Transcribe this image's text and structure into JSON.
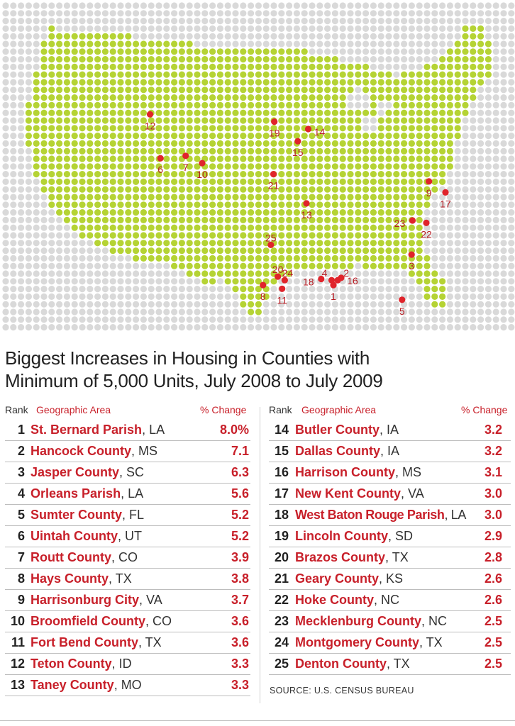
{
  "title_line1": "Biggest Increases in Housing in Counties with",
  "title_line2": "Minimum of 5,000 Units, July 2008 to July 2009",
  "headers": {
    "rank": "Rank",
    "area": "Geographic Area",
    "change": "% Change"
  },
  "colors": {
    "dot_background": "#d9d9d9",
    "dot_land": "#b5d334",
    "marker": "#e0242b",
    "label": "#b81e25"
  },
  "markers": [
    {
      "label": "1",
      "lon": -89.9,
      "lat": 29.9
    },
    {
      "label": "2",
      "lon": -89.4,
      "lat": 30.3
    },
    {
      "label": "3",
      "lon": -80.9,
      "lat": 32.4
    },
    {
      "label": "4",
      "lon": -90.1,
      "lat": 30.3
    },
    {
      "label": "5",
      "lon": -82.0,
      "lat": 28.7
    },
    {
      "label": "6",
      "lon": -109.8,
      "lat": 40.3
    },
    {
      "label": "7",
      "lon": -106.9,
      "lat": 40.5
    },
    {
      "label": "8",
      "lon": -98.0,
      "lat": 29.9
    },
    {
      "label": "9",
      "lon": -78.9,
      "lat": 38.4
    },
    {
      "label": "10",
      "lon": -105.0,
      "lat": 39.9
    },
    {
      "label": "11",
      "lon": -95.8,
      "lat": 29.6
    },
    {
      "label": "12",
      "lon": -111.0,
      "lat": 43.9
    },
    {
      "label": "13",
      "lon": -93.0,
      "lat": 36.6
    },
    {
      "label": "14",
      "lon": -92.8,
      "lat": 42.7
    },
    {
      "label": "15",
      "lon": -94.0,
      "lat": 41.7
    },
    {
      "label": "16",
      "lon": -89.0,
      "lat": 30.5
    },
    {
      "label": "17",
      "lon": -77.0,
      "lat": 37.5
    },
    {
      "label": "18",
      "lon": -91.3,
      "lat": 30.4
    },
    {
      "label": "19",
      "lon": -96.7,
      "lat": 43.3
    },
    {
      "label": "20",
      "lon": -96.3,
      "lat": 30.6
    },
    {
      "label": "21",
      "lon": -96.8,
      "lat": 39.0
    },
    {
      "label": "22",
      "lon": -79.2,
      "lat": 35.0
    },
    {
      "label": "23",
      "lon": -80.8,
      "lat": 35.2
    },
    {
      "label": "24",
      "lon": -95.5,
      "lat": 30.3
    },
    {
      "label": "25",
      "lon": -97.1,
      "lat": 33.2
    }
  ],
  "rows_left": [
    {
      "rank": "1",
      "name": "St. Bernard Parish",
      "state": ", LA",
      "change": "8.0%"
    },
    {
      "rank": "2",
      "name": "Hancock County",
      "state": ", MS",
      "change": "7.1"
    },
    {
      "rank": "3",
      "name": "Jasper County",
      "state": ", SC",
      "change": "6.3"
    },
    {
      "rank": "4",
      "name": "Orleans Parish",
      "state": ", LA",
      "change": "5.6"
    },
    {
      "rank": "5",
      "name": "Sumter County",
      "state": ", FL",
      "change": "5.2"
    },
    {
      "rank": "6",
      "name": "Uintah County",
      "state": ", UT",
      "change": "5.2"
    },
    {
      "rank": "7",
      "name": "Routt County",
      "state": ", CO",
      "change": "3.9"
    },
    {
      "rank": "8",
      "name": "Hays County",
      "state": ", TX",
      "change": "3.8"
    },
    {
      "rank": "9",
      "name": "Harrisonburg City",
      "state": ", VA",
      "change": "3.7"
    },
    {
      "rank": "10",
      "name": "Broomfield County",
      "state": ", CO",
      "change": "3.6"
    },
    {
      "rank": "11",
      "name": "Fort Bend County",
      "state": ", TX",
      "change": "3.6"
    },
    {
      "rank": "12",
      "name": "Teton County",
      "state": ", ID",
      "change": "3.3"
    },
    {
      "rank": "13",
      "name": "Taney County",
      "state": ", MO",
      "change": "3.3"
    }
  ],
  "rows_right": [
    {
      "rank": "14",
      "name": "Butler County",
      "state": ", IA",
      "change": "3.2"
    },
    {
      "rank": "15",
      "name": "Dallas County",
      "state": ", IA",
      "change": "3.2"
    },
    {
      "rank": "16",
      "name": "Harrison County",
      "state": ", MS",
      "change": "3.1"
    },
    {
      "rank": "17",
      "name": "New Kent County",
      "state": ", VA",
      "change": "3.0"
    },
    {
      "rank": "18",
      "name": "West Baton Rouge Parish",
      "state": ", LA",
      "change": "3.0"
    },
    {
      "rank": "19",
      "name": "Lincoln County",
      "state": ", SD",
      "change": "2.9"
    },
    {
      "rank": "20",
      "name": "Brazos County",
      "state": ", TX",
      "change": "2.8"
    },
    {
      "rank": "21",
      "name": "Geary County",
      "state": ", KS",
      "change": "2.6"
    },
    {
      "rank": "22",
      "name": "Hoke County",
      "state": ", NC",
      "change": "2.6"
    },
    {
      "rank": "23",
      "name": "Mecklenburg County",
      "state": ", NC",
      "change": "2.5"
    },
    {
      "rank": "24",
      "name": "Montgomery County",
      "state": ", TX",
      "change": "2.5"
    },
    {
      "rank": "25",
      "name": "Denton County",
      "state": ", TX",
      "change": "2.5"
    }
  ],
  "source": "SOURCE: U.S. CENSUS BUREAU"
}
